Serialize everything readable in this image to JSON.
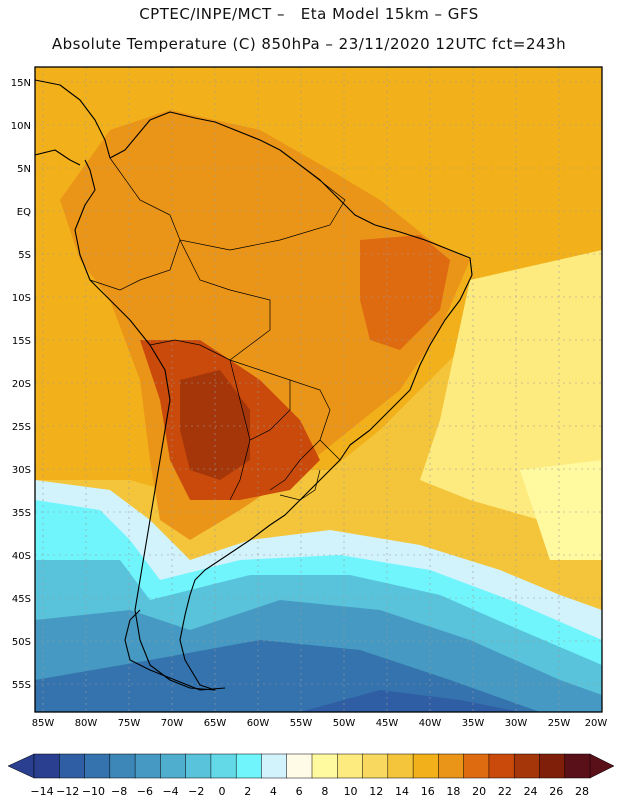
{
  "header": {
    "line1": "CPTEC/INPE/MCT –   Eta Model 15km – GFS",
    "line2": "Absolute Temperature (C) 850hPa – 23/11/2020 12UTC fct=243h"
  },
  "axes": {
    "lat_labels": [
      "15N",
      "10N",
      "5N",
      "EQ",
      "5S",
      "10S",
      "15S",
      "20S",
      "25S",
      "30S",
      "35S",
      "40S",
      "45S",
      "50S",
      "55S"
    ],
    "lon_labels": [
      "85W",
      "80W",
      "75W",
      "70W",
      "65W",
      "60W",
      "55W",
      "50W",
      "45W",
      "40W",
      "35W",
      "30W",
      "25W",
      "20W"
    ]
  },
  "colorbar": {
    "labels": [
      "-14",
      "-12",
      "-10",
      "-8",
      "-6",
      "-4",
      "-2",
      "0",
      "2",
      "4",
      "6",
      "8",
      "10",
      "12",
      "14",
      "16",
      "18",
      "20",
      "22",
      "24",
      "26",
      "28"
    ],
    "colors": [
      "#2a3f8f",
      "#2f5ea4",
      "#3473ad",
      "#3d86b8",
      "#4599c2",
      "#4fadce",
      "#58c3da",
      "#63d8e6",
      "#6ff5fb",
      "#d2f3fc",
      "#fffbe6",
      "#fff9a0",
      "#fdeb80",
      "#f8d85e",
      "#f4c53a",
      "#f2b11a",
      "#ea9418",
      "#df6b10",
      "#c94a0a",
      "#a4360a",
      "#7f1f0a",
      "#5a1018"
    ]
  },
  "map": {
    "coastline_color": "#000000",
    "grid_color": "#9a9a9a",
    "warm_fill": "#f2b11a",
    "hot_fill": "#df6b10",
    "cold_fill": "#4fadce"
  }
}
